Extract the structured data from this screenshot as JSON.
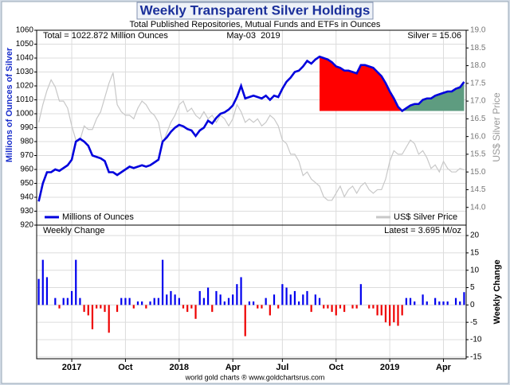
{
  "chart_data": [
    {
      "type": "line",
      "title": "Weekly Transparent Silver Holdings",
      "subtitle": "Total Published Repositories, Mutual Funds and ETFs in Ounces",
      "annotations": [
        "Total = 1022.872 Million Ounces",
        "May-03  2019",
        "Silver = 15.06"
      ],
      "ylabel": "Millions of Ounces of Silver",
      "y2label": "US$ Silver Price",
      "ylim": [
        920,
        1060
      ],
      "yticks": [
        920,
        930,
        940,
        950,
        960,
        970,
        980,
        990,
        1000,
        1010,
        1020,
        1030,
        1040,
        1050,
        1060
      ],
      "y2lim": [
        13.5,
        19
      ],
      "y2ticks": [
        {
          "value": 14,
          "label": "14.0"
        },
        {
          "value": 14.5,
          "label": "14.5"
        },
        {
          "value": 15,
          "label": "15.0"
        },
        {
          "value": 15.5,
          "label": "15.5"
        },
        {
          "value": 16,
          "label": "16.0"
        },
        {
          "value": 16.5,
          "label": "16.5"
        },
        {
          "value": 17,
          "label": "17.0"
        },
        {
          "value": 17.5,
          "label": "17.5"
        },
        {
          "value": 18,
          "label": "18.0"
        },
        {
          "value": 18.5,
          "label": "18.5"
        },
        {
          "value": 19,
          "label": "19.0"
        }
      ],
      "grid": true,
      "fill_colors": {
        "decline": "#ff0000",
        "recovery": "#5e9c80"
      },
      "series": [
        {
          "name": "Millions of Ounces",
          "color": "#0000dd",
          "values": [
            937,
            950,
            958,
            958,
            960,
            959,
            961,
            963,
            967,
            980,
            982,
            980,
            977,
            970,
            969,
            968,
            966,
            958,
            958,
            956,
            958,
            960,
            962,
            961,
            962,
            963,
            962,
            963,
            965,
            967,
            980,
            983,
            987,
            990,
            992,
            991,
            989,
            988,
            984,
            988,
            990,
            995,
            993,
            997,
            1000,
            1001,
            1003,
            1006,
            1012,
            1020,
            1011,
            1012,
            1013,
            1012,
            1011,
            1013,
            1010,
            1013,
            1012,
            1018,
            1023,
            1026,
            1030,
            1031,
            1034,
            1038,
            1036,
            1039,
            1041,
            1040,
            1039,
            1037,
            1034,
            1033,
            1031,
            1031,
            1030,
            1029,
            1035,
            1035,
            1034,
            1033,
            1030,
            1027,
            1022,
            1016,
            1011,
            1005,
            1002,
            1004,
            1006,
            1007,
            1007,
            1010,
            1011,
            1011,
            1013,
            1014,
            1015,
            1016,
            1016,
            1018,
            1019,
            1022.872
          ]
        },
        {
          "name": "US$ Silver Price",
          "color": "#c8c8c8",
          "axis": "y2",
          "values": [
            16.4,
            16.9,
            17.3,
            17.6,
            17.4,
            17.0,
            17.0,
            16.8,
            16.3,
            15.9,
            15.9,
            16.3,
            16.2,
            16.2,
            16.5,
            16.7,
            17.1,
            17.5,
            17.8,
            16.9,
            16.7,
            16.6,
            16.6,
            16.5,
            16.8,
            17.0,
            16.9,
            16.7,
            16.6,
            16.4,
            15.8,
            16.1,
            16.4,
            16.6,
            16.9,
            17.0,
            16.7,
            16.8,
            16.6,
            16.5,
            16.7,
            16.5,
            16.6,
            16.4,
            16.6,
            16.5,
            16.3,
            16.5,
            16.9,
            16.7,
            16.4,
            16.5,
            16.4,
            16.5,
            16.3,
            16.4,
            16.6,
            16.5,
            16.3,
            15.9,
            15.8,
            15.5,
            15.5,
            15.3,
            14.9,
            15.0,
            14.8,
            14.7,
            14.6,
            14.3,
            14.2,
            14.2,
            14.4,
            14.6,
            14.3,
            14.5,
            14.6,
            14.4,
            14.6,
            14.7,
            14.5,
            14.4,
            14.5,
            14.5,
            14.8,
            15.3,
            15.6,
            15.5,
            15.5,
            15.7,
            15.9,
            15.8,
            15.5,
            15.6,
            15.4,
            15.1,
            15.2,
            15.0,
            15.3,
            15.1,
            15.0,
            15.0,
            15.1,
            15.06
          ]
        }
      ]
    },
    {
      "type": "bar",
      "title": "Weekly Change",
      "annotation": "Latest = 3.695 M/oz",
      "ylabel": "Weekly Change",
      "categories": [
        null,
        null,
        null,
        null,
        null,
        null,
        null,
        null,
        "2017",
        null,
        null,
        null,
        null,
        null,
        null,
        null,
        null,
        null,
        null,
        null,
        null,
        "Oct",
        null,
        null,
        null,
        null,
        null,
        null,
        null,
        null,
        null,
        null,
        null,
        null,
        "2018",
        null,
        null,
        null,
        null,
        null,
        null,
        null,
        null,
        null,
        null,
        null,
        null,
        "Apr",
        null,
        null,
        null,
        null,
        null,
        null,
        null,
        null,
        null,
        null,
        null,
        "Jul",
        null,
        null,
        null,
        null,
        null,
        null,
        null,
        null,
        null,
        null,
        null,
        null,
        "Oct",
        null,
        null,
        null,
        null,
        null,
        null,
        null,
        null,
        null,
        null,
        null,
        null,
        "2019",
        null,
        null,
        null,
        null,
        null,
        null,
        null,
        null,
        null,
        null,
        null,
        null,
        "Apr",
        null,
        null,
        null,
        null,
        null
      ],
      "values": [
        7.5,
        13,
        8,
        0,
        2,
        -1,
        2,
        2,
        4,
        13,
        2,
        -2,
        -3,
        -7,
        -1,
        -1,
        -2,
        -8,
        0,
        -2,
        2,
        2,
        2,
        -1,
        1,
        1,
        -1,
        1,
        2,
        2,
        13,
        3,
        4,
        3,
        2,
        -1,
        -2,
        -1,
        -4,
        4,
        2,
        5,
        -2,
        4,
        3,
        1,
        2,
        3,
        6,
        8,
        -9,
        1,
        1,
        -1,
        -1,
        2,
        -3,
        3,
        -1,
        6,
        5,
        3,
        4,
        1,
        3,
        4,
        -2,
        3,
        2,
        -1,
        -1,
        -2,
        -3,
        -1,
        -2,
        0,
        -1,
        -1,
        6,
        0,
        -1,
        -1,
        -3,
        -3,
        -5,
        -6,
        -5,
        -6,
        -3,
        2,
        2,
        1,
        0,
        3,
        1,
        0,
        2,
        1,
        1,
        1,
        0,
        2,
        1,
        3.695
      ],
      "colors": {
        "positive": "#0000ee",
        "negative": "#ee0000"
      },
      "ylim": [
        -15.5,
        23
      ],
      "yticks": [
        -15,
        -10,
        -5,
        0,
        5,
        10,
        15,
        20
      ],
      "grid": true
    }
  ],
  "footer": "world gold charts ® www.goldchartsrus.com"
}
